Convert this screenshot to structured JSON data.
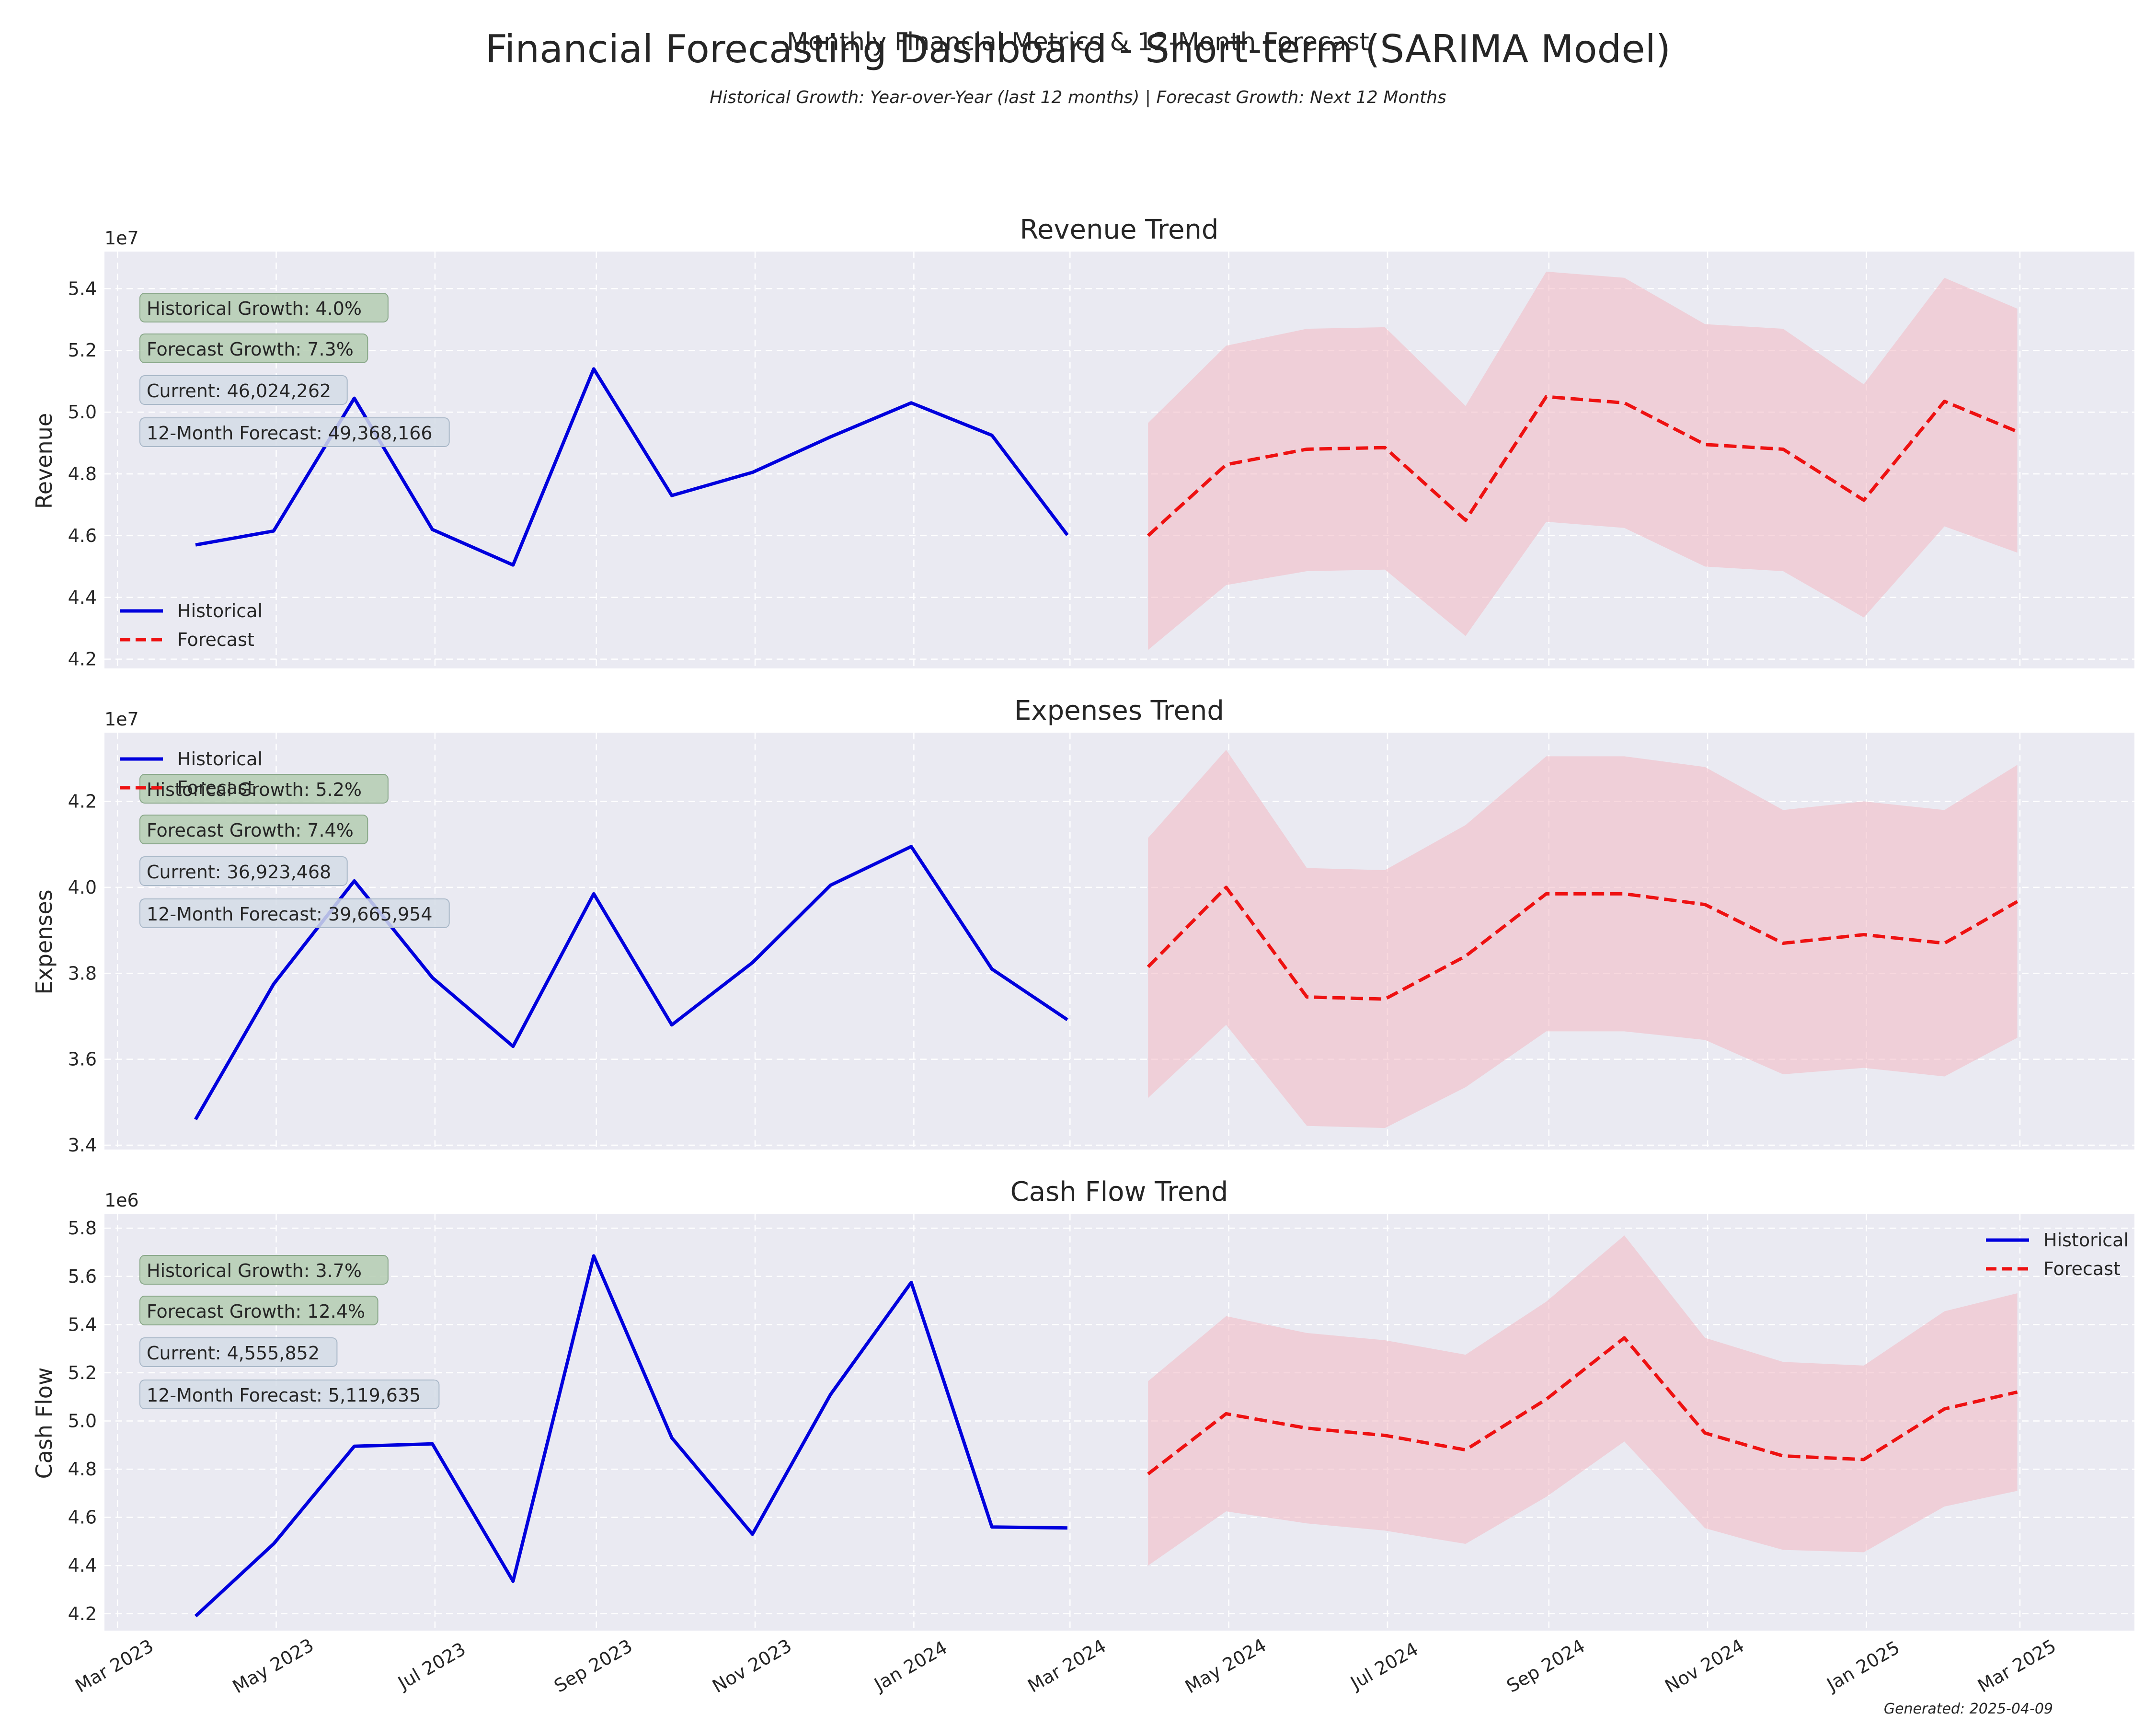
{
  "header": {
    "title": "Financial Forecasting Dashboard - Short-term (SARIMA Model)",
    "suptitle": "Monthly Financial Metrics & 12-Month Forecast",
    "subtitle": "Historical Growth: Year-over-Year (last 12 months) | Forecast Growth: Next 12 Months"
  },
  "footer": {
    "generated": "Generated: 2025-04-09"
  },
  "colors": {
    "historical": "#0000dd",
    "forecast": "#ee1111",
    "band": "#f2b8c2",
    "axes_bg": "#eaeaf2",
    "box_growth": "#b4ccb2",
    "box_value": "#d3dce6"
  },
  "chart_data": [
    {
      "type": "line",
      "title": "Revenue Trend",
      "ylabel": "Revenue",
      "exponent_label": "1e7",
      "ylim": [
        4.17,
        5.52
      ],
      "yticks": [
        4.2,
        4.4,
        4.6,
        4.8,
        5.0,
        5.2,
        5.4
      ],
      "xlim": [
        "2023-02-24",
        "2025-04-14"
      ],
      "xticks": [
        {
          "date": "2023-03-01",
          "label": "Mar 2023"
        },
        {
          "date": "2023-05-01",
          "label": "May 2023"
        },
        {
          "date": "2023-07-01",
          "label": "Jul 2023"
        },
        {
          "date": "2023-09-01",
          "label": "Sep 2023"
        },
        {
          "date": "2023-11-01",
          "label": "Nov 2023"
        },
        {
          "date": "2024-01-01",
          "label": "Jan 2024"
        },
        {
          "date": "2024-03-01",
          "label": "Mar 2024"
        },
        {
          "date": "2024-05-01",
          "label": "May 2024"
        },
        {
          "date": "2024-07-01",
          "label": "Jul 2024"
        },
        {
          "date": "2024-09-01",
          "label": "Sep 2024"
        },
        {
          "date": "2024-11-01",
          "label": "Nov 2024"
        },
        {
          "date": "2025-01-01",
          "label": "Jan 2025"
        },
        {
          "date": "2025-03-01",
          "label": "Mar 2025"
        }
      ],
      "legend": {
        "position": "lower left",
        "entries": [
          "Historical",
          "Forecast"
        ]
      },
      "annotations": [
        "Historical Growth: 4.0%",
        "Forecast Growth: 7.3%",
        "Current: 46,024,262",
        "12-Month Forecast: 49,368,166"
      ],
      "series": [
        {
          "name": "Historical",
          "style": "solid",
          "x": [
            "2023-03-31",
            "2023-04-30",
            "2023-05-31",
            "2023-06-30",
            "2023-07-31",
            "2023-08-31",
            "2023-09-30",
            "2023-10-31",
            "2023-11-30",
            "2023-12-31",
            "2024-01-31",
            "2024-02-29"
          ],
          "values": [
            4.57,
            4.615,
            5.045,
            4.62,
            4.505,
            5.14,
            4.73,
            4.805,
            4.92,
            5.03,
            4.925,
            4.602
          ]
        },
        {
          "name": "Forecast",
          "style": "dashed",
          "x": [
            "2024-03-31",
            "2024-04-30",
            "2024-05-31",
            "2024-06-30",
            "2024-07-31",
            "2024-08-31",
            "2024-09-30",
            "2024-10-31",
            "2024-11-30",
            "2024-12-31",
            "2025-01-31",
            "2025-02-28"
          ],
          "values": [
            4.6,
            4.83,
            4.88,
            4.885,
            4.65,
            5.05,
            5.03,
            4.895,
            4.88,
            4.715,
            5.035,
            4.937
          ],
          "lower": [
            4.23,
            4.44,
            4.485,
            4.49,
            4.275,
            4.645,
            4.625,
            4.5,
            4.485,
            4.335,
            4.63,
            4.545
          ],
          "upper": [
            4.965,
            5.215,
            5.27,
            5.275,
            5.02,
            5.455,
            5.435,
            5.285,
            5.27,
            5.09,
            5.435,
            5.335
          ]
        }
      ]
    },
    {
      "type": "line",
      "title": "Expenses Trend",
      "ylabel": "Expenses",
      "exponent_label": "1e7",
      "ylim": [
        3.39,
        4.36
      ],
      "yticks": [
        3.4,
        3.6,
        3.8,
        4.0,
        4.2
      ],
      "xlim": [
        "2023-02-24",
        "2025-04-14"
      ],
      "legend": {
        "position": "upper left",
        "entries": [
          "Historical",
          "Forecast"
        ]
      },
      "annotations": [
        "Historical Growth: 5.2%",
        "Forecast Growth: 7.4%",
        "Current: 36,923,468",
        "12-Month Forecast: 39,665,954"
      ],
      "series": [
        {
          "name": "Historical",
          "style": "solid",
          "x": [
            "2023-03-31",
            "2023-04-30",
            "2023-05-31",
            "2023-06-30",
            "2023-07-31",
            "2023-08-31",
            "2023-09-30",
            "2023-10-31",
            "2023-11-30",
            "2023-12-31",
            "2024-01-31",
            "2024-02-29"
          ],
          "values": [
            3.46,
            3.775,
            4.015,
            3.79,
            3.63,
            3.985,
            3.68,
            3.825,
            4.005,
            4.095,
            3.81,
            3.692
          ]
        },
        {
          "name": "Forecast",
          "style": "dashed",
          "x": [
            "2024-03-31",
            "2024-04-30",
            "2024-05-31",
            "2024-06-30",
            "2024-07-31",
            "2024-08-31",
            "2024-09-30",
            "2024-10-31",
            "2024-11-30",
            "2024-12-31",
            "2025-01-31",
            "2025-02-28"
          ],
          "values": [
            3.815,
            4.0,
            3.745,
            3.74,
            3.84,
            3.985,
            3.985,
            3.96,
            3.87,
            3.89,
            3.87,
            3.967
          ],
          "lower": [
            3.51,
            3.68,
            3.445,
            3.44,
            3.535,
            3.665,
            3.665,
            3.645,
            3.565,
            3.58,
            3.56,
            3.65
          ],
          "upper": [
            4.115,
            4.32,
            4.045,
            4.04,
            4.145,
            4.305,
            4.305,
            4.28,
            4.18,
            4.2,
            4.18,
            4.285
          ]
        }
      ]
    },
    {
      "type": "line",
      "title": "Cash Flow Trend",
      "ylabel": "Cash Flow",
      "exponent_label": "1e6",
      "ylim": [
        4.13,
        5.86
      ],
      "yticks": [
        4.2,
        4.4,
        4.6,
        4.8,
        5.0,
        5.2,
        5.4,
        5.6,
        5.8
      ],
      "xlim": [
        "2023-02-24",
        "2025-04-14"
      ],
      "legend": {
        "position": "upper right",
        "entries": [
          "Historical",
          "Forecast"
        ]
      },
      "annotations": [
        "Historical Growth: 3.7%",
        "Forecast Growth: 12.4%",
        "Current: 4,555,852",
        "12-Month Forecast: 5,119,635"
      ],
      "series": [
        {
          "name": "Historical",
          "style": "solid",
          "x": [
            "2023-03-31",
            "2023-04-30",
            "2023-05-31",
            "2023-06-30",
            "2023-07-31",
            "2023-08-31",
            "2023-09-30",
            "2023-10-31",
            "2023-11-30",
            "2023-12-31",
            "2024-01-31",
            "2024-02-29"
          ],
          "values": [
            4.19,
            4.49,
            4.895,
            4.905,
            4.335,
            5.685,
            4.93,
            4.53,
            5.11,
            5.575,
            4.56,
            4.556
          ]
        },
        {
          "name": "Forecast",
          "style": "dashed",
          "x": [
            "2024-03-31",
            "2024-04-30",
            "2024-05-31",
            "2024-06-30",
            "2024-07-31",
            "2024-08-31",
            "2024-09-30",
            "2024-10-31",
            "2024-11-30",
            "2024-12-31",
            "2025-01-31",
            "2025-02-28"
          ],
          "values": [
            4.78,
            5.03,
            4.97,
            4.94,
            4.88,
            5.09,
            5.345,
            4.95,
            4.855,
            4.84,
            5.05,
            5.12
          ],
          "lower": [
            4.4,
            4.625,
            4.575,
            4.545,
            4.49,
            4.685,
            4.915,
            4.555,
            4.465,
            4.455,
            4.645,
            4.71
          ],
          "upper": [
            5.165,
            5.435,
            5.365,
            5.335,
            5.275,
            5.495,
            5.77,
            5.345,
            5.245,
            5.23,
            5.455,
            5.53
          ]
        }
      ]
    }
  ]
}
